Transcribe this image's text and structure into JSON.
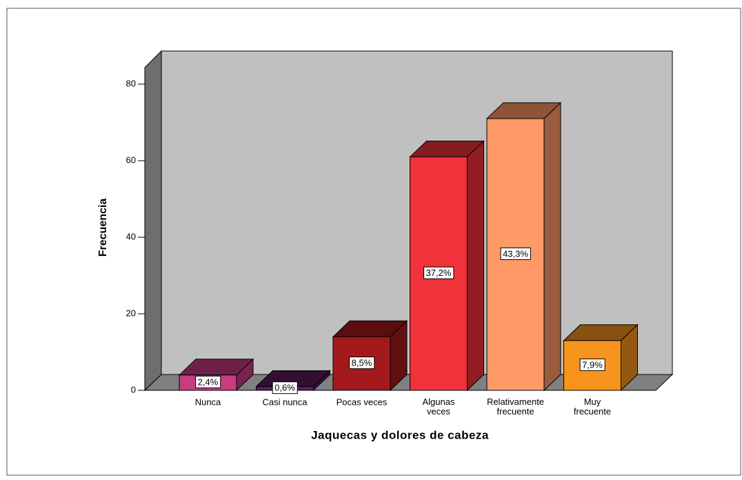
{
  "chart_data": {
    "type": "bar3d",
    "x_label": "Jaquecas y dolores de cabeza",
    "y_label": "Frecuencia",
    "categories": [
      "Nunca",
      "Casi nunca",
      "Pocas veces",
      "Algunas veces",
      "Relativamente frecuente",
      "Muy frecuente"
    ],
    "values": [
      4,
      1,
      14,
      61,
      71,
      13
    ],
    "percent_labels": [
      "2,4%",
      "0,6%",
      "8,5%",
      "37,2%",
      "43,3%",
      "7,9%"
    ],
    "colors": [
      "#c83c82",
      "#5c1a5c",
      "#a3191c",
      "#f0323a",
      "#ff9966",
      "#f7941d"
    ],
    "ylim": [
      0,
      80
    ],
    "yticks": [
      0,
      20,
      40,
      60,
      80
    ]
  }
}
